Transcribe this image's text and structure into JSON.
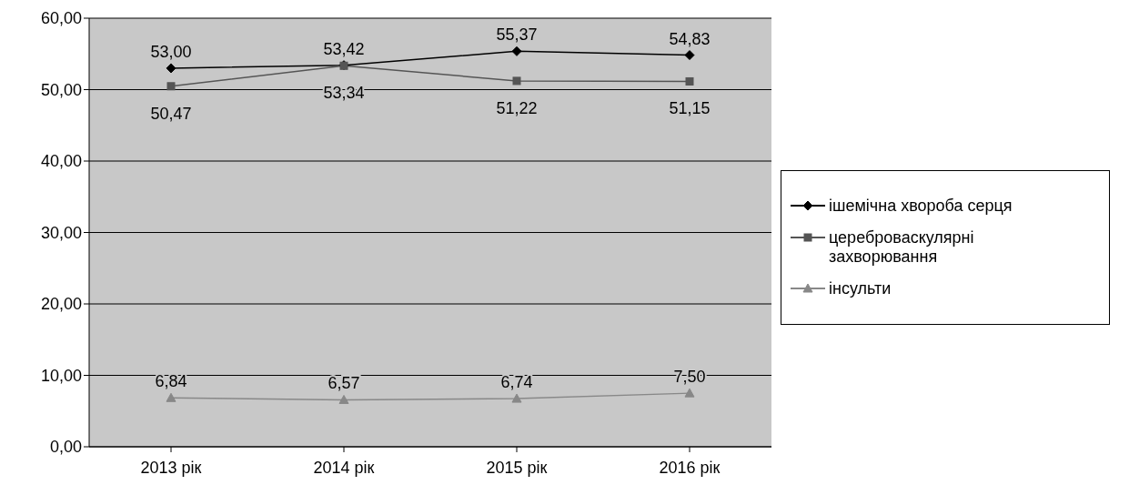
{
  "chart_data": {
    "type": "line",
    "categories": [
      "2013 рік",
      "2014 рік",
      "2015 рік",
      "2016 рік"
    ],
    "series": [
      {
        "name": "ішемічна хвороба серця",
        "color": "#000000",
        "marker": "diamond",
        "values": [
          53.0,
          53.42,
          55.37,
          54.83
        ],
        "value_labels": [
          "53,00",
          "53,42",
          "55,37",
          "54,83"
        ]
      },
      {
        "name": "цереброваскулярні захворювання",
        "color": "#555555",
        "marker": "square",
        "values": [
          50.47,
          53.34,
          51.22,
          51.15
        ],
        "value_labels": [
          "50,47",
          "53,34",
          "51,22",
          "51,15"
        ]
      },
      {
        "name": "інсульти",
        "color": "#888888",
        "marker": "triangle",
        "values": [
          6.84,
          6.57,
          6.74,
          7.5
        ],
        "value_labels": [
          "6,84",
          "6,57",
          "6,74",
          "7,50"
        ]
      }
    ],
    "ylim": [
      0,
      60
    ],
    "yticks": [
      {
        "value": 0,
        "label": "0,00"
      },
      {
        "value": 10,
        "label": "10,00"
      },
      {
        "value": 20,
        "label": "20,00"
      },
      {
        "value": 30,
        "label": "30,00"
      },
      {
        "value": 40,
        "label": "40,00"
      },
      {
        "value": 50,
        "label": "50,00"
      },
      {
        "value": 60,
        "label": "60,00"
      }
    ],
    "grid": "y",
    "legend": "right",
    "line_style": "solid"
  }
}
